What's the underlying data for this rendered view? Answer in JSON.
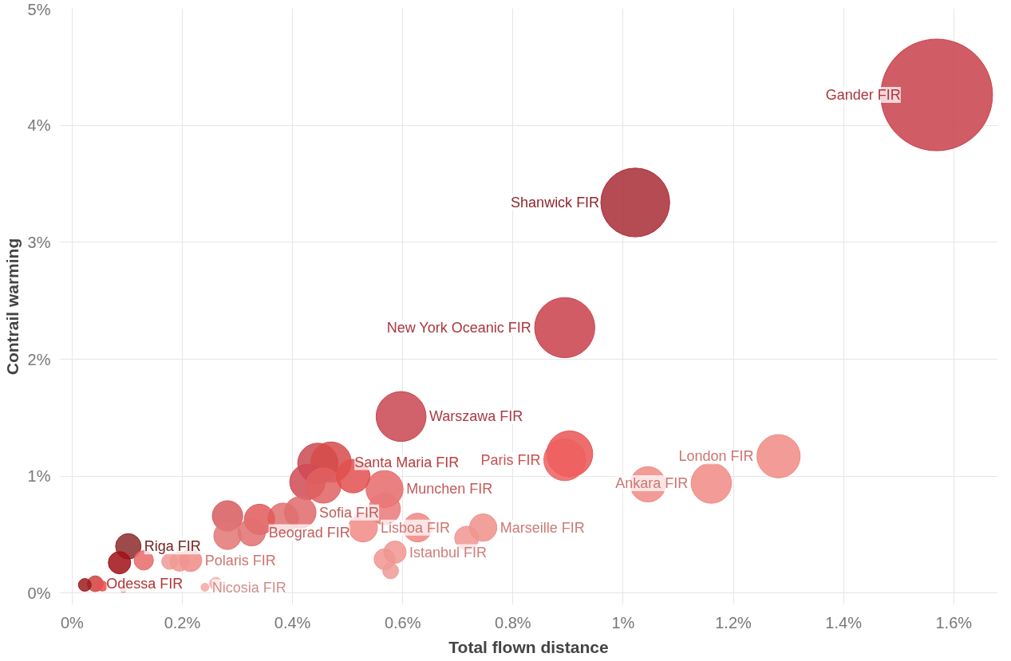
{
  "chart_data": {
    "type": "bubble",
    "xlabel": "Total flown distance",
    "ylabel": "Contrail warming",
    "xlim": [
      -0.023,
      1.68
    ],
    "ylim": [
      -0.1,
      5.0
    ],
    "xticks": [
      {
        "value": 0,
        "label": "0%"
      },
      {
        "value": 0.2,
        "label": "0.2%"
      },
      {
        "value": 0.4,
        "label": "0.4%"
      },
      {
        "value": 0.6,
        "label": "0.6%"
      },
      {
        "value": 0.8,
        "label": "0.8%"
      },
      {
        "value": 1,
        "label": "1%"
      },
      {
        "value": 1.2,
        "label": "1.2%"
      },
      {
        "value": 1.4,
        "label": "1.4%"
      },
      {
        "value": 1.6,
        "label": "1.6%"
      }
    ],
    "yticks": [
      {
        "value": 0,
        "label": "0%"
      },
      {
        "value": 1,
        "label": "1%"
      },
      {
        "value": 2,
        "label": "2%"
      },
      {
        "value": 3,
        "label": "3%"
      },
      {
        "value": 4,
        "label": "4%"
      },
      {
        "value": 5,
        "label": "5%"
      }
    ],
    "grid": true,
    "x": [
      1.569,
      1.022,
      0.894,
      0.597,
      0.903,
      0.894,
      1.282,
      1.16,
      1.045,
      0.746,
      0.716,
      0.627,
      0.586,
      0.567,
      0.578,
      0.567,
      0.567,
      0.446,
      0.47,
      0.427,
      0.456,
      0.51,
      0.414,
      0.383,
      0.34,
      0.282,
      0.326,
      0.282,
      0.215,
      0.195,
      0.102,
      0.086,
      0.13,
      0.042,
      0.023,
      0.241,
      0.261,
      0.093,
      0.177,
      0.055,
      0.528
    ],
    "values": [
      4.26,
      3.34,
      2.27,
      1.51,
      1.19,
      1.14,
      1.17,
      0.94,
      0.93,
      0.56,
      0.47,
      0.56,
      0.35,
      0.29,
      0.19,
      0.89,
      0.72,
      1.11,
      1.12,
      0.95,
      0.92,
      1.0,
      0.69,
      0.64,
      0.63,
      0.66,
      0.52,
      0.49,
      0.28,
      0.27,
      0.4,
      0.26,
      0.28,
      0.08,
      0.07,
      0.05,
      0.08,
      0.03,
      0.27,
      0.06,
      0.56
    ],
    "sizes": [
      1,
      0.38,
      0.29,
      0.2,
      0.17,
      0.14,
      0.15,
      0.13,
      0.1,
      0.06,
      0.046,
      0.066,
      0.04,
      0.035,
      0.02,
      0.11,
      0.08,
      0.13,
      0.13,
      0.1,
      0.1,
      0.09,
      0.08,
      0.074,
      0.074,
      0.074,
      0.06,
      0.06,
      0.04,
      0.03,
      0.052,
      0.04,
      0.03,
      0.02,
      0.013,
      0.005,
      0.013,
      0.003,
      0.02,
      0.008,
      0.066
    ],
    "colors": [
      "#c8404a",
      "#a82c35",
      "#c9404a",
      "#c94550",
      "#ea5555",
      "#ee6060",
      "#f08a85",
      "#f08a85",
      "#f08a85",
      "#f08f8a",
      "#f09590",
      "#f08580",
      "#f09590",
      "#f09590",
      "#f09a95",
      "#e86a6a",
      "#ea7878",
      "#c84a52",
      "#d84a4a",
      "#d04a55",
      "#e06060",
      "#e25050",
      "#e06a6a",
      "#e07070",
      "#e05a5a",
      "#d85a5e",
      "#e27070",
      "#e27575",
      "#f08a85",
      "#f09590",
      "#8c2a2a",
      "#a01018",
      "#e86a6a",
      "#d04040",
      "#9a1c1c",
      "#f5a8a5",
      "#f5b0ad",
      "#f09a95",
      "#f09a95",
      "#e85050",
      "#f08a85"
    ],
    "annotations": [
      {
        "text": "Gander FIR",
        "x": 1.569,
        "y": 4.26
      },
      {
        "text": "Shanwick FIR",
        "x": 1.022,
        "y": 3.34
      },
      {
        "text": "New York Oceanic FIR",
        "x": 0.894,
        "y": 2.27
      },
      {
        "text": "Warszawa FIR",
        "x": 0.597,
        "y": 1.51
      },
      {
        "text": "Paris FIR",
        "x": 0.894,
        "y": 1.14
      },
      {
        "text": "London FIR",
        "x": 1.282,
        "y": 1.17
      },
      {
        "text": "Ankara FIR",
        "x": 1.16,
        "y": 0.94
      },
      {
        "text": "Santa Maria FIR",
        "x": 0.47,
        "y": 1.12
      },
      {
        "text": "Munchen FIR",
        "x": 0.567,
        "y": 0.89
      },
      {
        "text": "Sofia FIR",
        "x": 0.414,
        "y": 0.69
      },
      {
        "text": "Lisboa FIR",
        "x": 0.528,
        "y": 0.56
      },
      {
        "text": "Marseille FIR",
        "x": 0.746,
        "y": 0.56
      },
      {
        "text": "Beograd FIR",
        "x": 0.326,
        "y": 0.52
      },
      {
        "text": "Istanbul FIR",
        "x": 0.586,
        "y": 0.35
      },
      {
        "text": "Riga FIR",
        "x": 0.102,
        "y": 0.4
      },
      {
        "text": "Polaris FIR",
        "x": 0.215,
        "y": 0.28
      },
      {
        "text": "Odessa FIR",
        "x": 0.042,
        "y": 0.08
      },
      {
        "text": "Nicosia FIR",
        "x": 0.241,
        "y": 0.05
      }
    ]
  }
}
